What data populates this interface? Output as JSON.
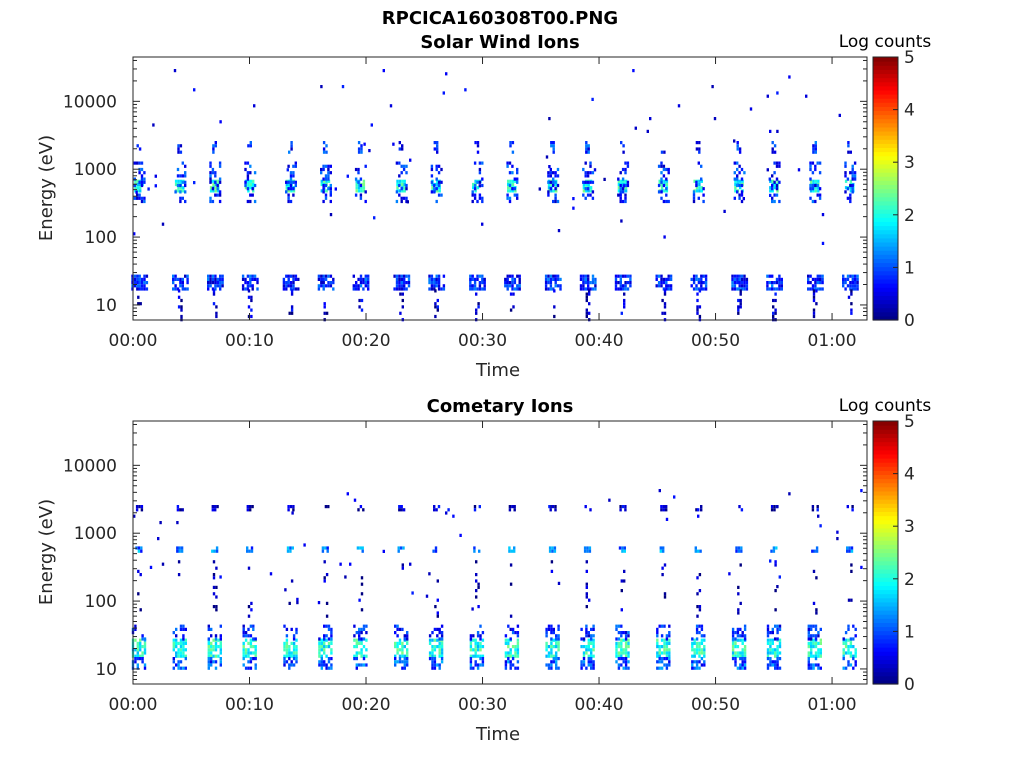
{
  "figure_title": "RPCICA160308T00.PNG",
  "chart_data": [
    {
      "type": "heatmap",
      "title": "Solar Wind Ions",
      "xlabel": "Time",
      "ylabel": "Energy (eV)",
      "y_scale": "log",
      "xlim": [
        "00:00",
        "01:03"
      ],
      "ylim": [
        6,
        45000
      ],
      "x_ticks": [
        "00:00",
        "00:10",
        "00:20",
        "00:30",
        "00:40",
        "00:50",
        "01:00"
      ],
      "y_ticks": [
        "10",
        "100",
        "1000",
        "10000"
      ],
      "colorbar": {
        "label": "Log counts",
        "range": [
          0,
          5
        ],
        "ticks": [
          "0",
          "1",
          "2",
          "3",
          "4",
          "5"
        ],
        "colormap": "jet"
      },
      "sweep_times": [
        "00:00.5",
        "00:04",
        "00:07",
        "00:10",
        "00:13.5",
        "00:16.5",
        "00:19.5",
        "00:23",
        "00:26",
        "00:29.5",
        "00:32.5",
        "00:36",
        "00:39",
        "00:42",
        "00:45.5",
        "00:48.5",
        "00:52",
        "00:55",
        "00:58.5",
        "01:01.5"
      ],
      "bands": [
        {
          "e_low": 500,
          "e_high": 700,
          "log_counts": 2.0,
          "width_min": 0.8,
          "density": 0.85
        },
        {
          "e_low": 350,
          "e_high": 1300,
          "log_counts": 0.8,
          "width_min": 0.9,
          "density": 0.35
        },
        {
          "e_low": 1800,
          "e_high": 2600,
          "log_counts": 0.8,
          "width_min": 0.4,
          "density": 0.6
        },
        {
          "e_low": 17,
          "e_high": 28,
          "log_counts": 0.8,
          "width_min": 1.3,
          "density": 0.8
        },
        {
          "e_low": 6,
          "e_high": 17,
          "log_counts": 0.3,
          "width_min": 0.3,
          "density": 0.35
        }
      ],
      "background": {
        "e_low": 80,
        "e_high": 30000,
        "log_counts": 0.2,
        "density": 0.0045
      }
    },
    {
      "type": "heatmap",
      "title": "Cometary Ions",
      "xlabel": "Time",
      "ylabel": "Energy (eV)",
      "y_scale": "log",
      "xlim": [
        "00:00",
        "01:03"
      ],
      "ylim": [
        6,
        45000
      ],
      "x_ticks": [
        "00:00",
        "00:10",
        "00:20",
        "00:30",
        "00:40",
        "00:50",
        "01:00"
      ],
      "y_ticks": [
        "10",
        "100",
        "1000",
        "10000"
      ],
      "colorbar": {
        "label": "Log counts",
        "range": [
          0,
          5
        ],
        "ticks": [
          "0",
          "1",
          "2",
          "3",
          "4",
          "5"
        ],
        "colormap": "jet"
      },
      "sweep_times": [
        "00:00.5",
        "00:04",
        "00:07",
        "00:10",
        "00:13.5",
        "00:16.5",
        "00:19.5",
        "00:23",
        "00:26",
        "00:29.5",
        "00:32.5",
        "00:36",
        "00:39",
        "00:42",
        "00:45.5",
        "00:48.5",
        "00:52",
        "00:55",
        "00:58.5",
        "01:01.5"
      ],
      "bands": [
        {
          "e_low": 15,
          "e_high": 28,
          "log_counts": 2.0,
          "width_min": 1.2,
          "density": 0.75
        },
        {
          "e_low": 10,
          "e_high": 15,
          "log_counts": 1.0,
          "width_min": 1.2,
          "density": 0.6
        },
        {
          "e_low": 28,
          "e_high": 45,
          "log_counts": 0.8,
          "width_min": 1.2,
          "density": 0.45
        },
        {
          "e_low": 520,
          "e_high": 640,
          "log_counts": 1.2,
          "width_min": 0.6,
          "density": 0.75
        },
        {
          "e_low": 2200,
          "e_high": 2600,
          "log_counts": 0.3,
          "width_min": 0.5,
          "density": 0.6
        },
        {
          "e_low": 60,
          "e_high": 400,
          "log_counts": 0.2,
          "width_min": 0.3,
          "density": 0.12
        }
      ],
      "background": {
        "e_low": 80,
        "e_high": 5000,
        "log_counts": 0.2,
        "density": 0.0035
      }
    }
  ]
}
